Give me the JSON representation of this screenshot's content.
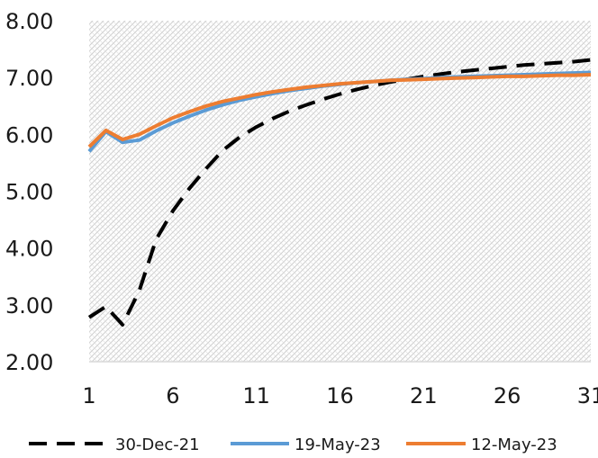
{
  "chart_data": {
    "type": "line",
    "title": "",
    "xlabel": "",
    "ylabel": "",
    "xlim": [
      1,
      31
    ],
    "ylim": [
      2.0,
      8.0
    ],
    "x_ticks": [
      1,
      6,
      11,
      16,
      21,
      26,
      31
    ],
    "y_ticks": [
      "2.00",
      "3.00",
      "4.00",
      "5.00",
      "6.00",
      "7.00",
      "8.00"
    ],
    "y_tick_values": [
      2,
      3,
      4,
      5,
      6,
      7,
      8
    ],
    "grid": "hatched plot area",
    "legend_position": "bottom",
    "x": [
      1,
      2,
      3,
      4,
      5,
      6,
      7,
      8,
      9,
      10,
      11,
      12,
      13,
      14,
      15,
      16,
      17,
      18,
      19,
      20,
      21,
      22,
      23,
      24,
      25,
      26,
      27,
      28,
      29,
      30,
      31
    ],
    "series": [
      {
        "name": "30-Dec-21",
        "color": "#000000",
        "dash": "dashed",
        "values": [
          2.78,
          2.97,
          2.65,
          3.25,
          4.15,
          4.65,
          5.05,
          5.4,
          5.72,
          5.95,
          6.13,
          6.28,
          6.41,
          6.52,
          6.62,
          6.71,
          6.79,
          6.86,
          6.92,
          6.97,
          7.02,
          7.06,
          7.1,
          7.13,
          7.16,
          7.19,
          7.22,
          7.24,
          7.26,
          7.28,
          7.31
        ]
      },
      {
        "name": "19-May-23",
        "color": "#5B9BD5",
        "dash": "solid",
        "values": [
          5.7,
          6.05,
          5.86,
          5.9,
          6.06,
          6.2,
          6.32,
          6.43,
          6.52,
          6.6,
          6.66,
          6.72,
          6.77,
          6.81,
          6.85,
          6.88,
          6.91,
          6.93,
          6.95,
          6.97,
          6.98,
          7.0,
          7.01,
          7.02,
          7.03,
          7.04,
          7.05,
          7.06,
          7.07,
          7.08,
          7.09
        ]
      },
      {
        "name": "12-May-23",
        "color": "#ED7D31",
        "dash": "solid",
        "values": [
          5.78,
          6.07,
          5.91,
          6.0,
          6.15,
          6.29,
          6.4,
          6.5,
          6.58,
          6.64,
          6.7,
          6.75,
          6.79,
          6.83,
          6.86,
          6.89,
          6.91,
          6.93,
          6.95,
          6.96,
          6.97,
          6.98,
          6.99,
          7.0,
          7.01,
          7.02,
          7.02,
          7.03,
          7.04,
          7.04,
          7.05
        ]
      }
    ]
  }
}
